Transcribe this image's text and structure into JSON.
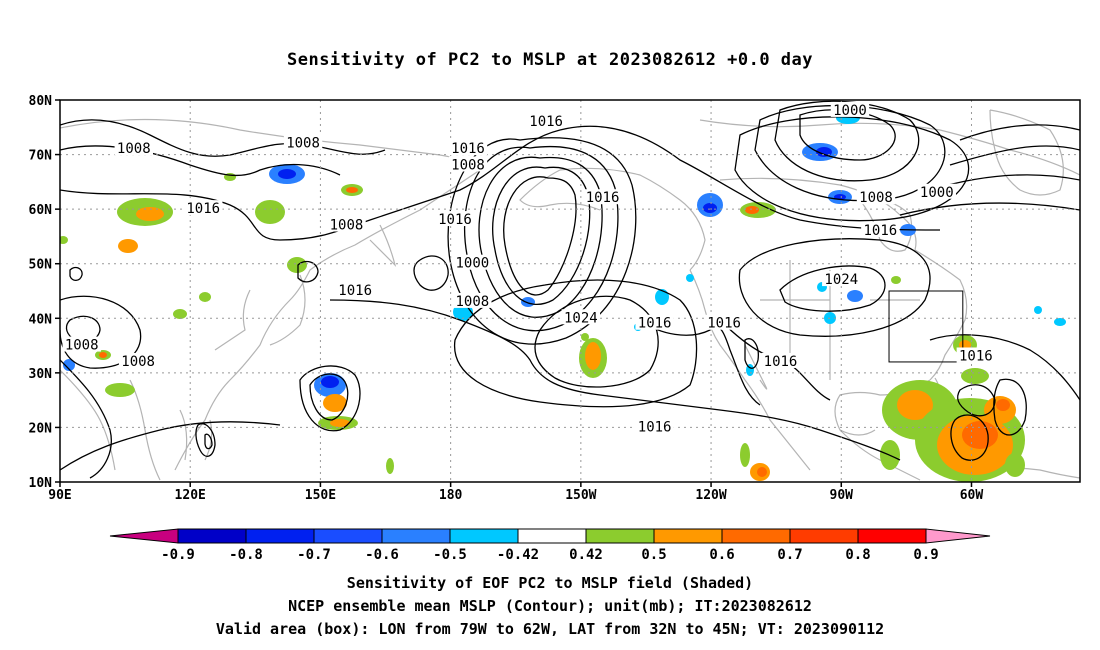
{
  "title": "Sensitivity of PC2 to MSLP at 2023082612 +0.0 day",
  "lat_labels": [
    "80N",
    "70N",
    "60N",
    "50N",
    "40N",
    "30N",
    "20N",
    "10N"
  ],
  "lon_labels": [
    "90E",
    "120E",
    "150E",
    "180",
    "150W",
    "120W",
    "90W",
    "60W"
  ],
  "contour_labels": [
    {
      "text": "1016",
      "lon": -158,
      "lat": 76
    },
    {
      "text": "1000",
      "lon": -88,
      "lat": 78
    },
    {
      "text": "1008",
      "lon": 107,
      "lat": 71
    },
    {
      "text": "1008",
      "lon": 146,
      "lat": 72
    },
    {
      "text": "1016",
      "lon": -176,
      "lat": 71
    },
    {
      "text": "1008",
      "lon": -176,
      "lat": 68
    },
    {
      "text": "1016",
      "lon": 123,
      "lat": 60
    },
    {
      "text": "1008",
      "lon": 156,
      "lat": 57
    },
    {
      "text": "1016",
      "lon": -179,
      "lat": 58
    },
    {
      "text": "1016",
      "lon": -145,
      "lat": 62
    },
    {
      "text": "1008",
      "lon": -82,
      "lat": 62
    },
    {
      "text": "1000",
      "lon": -68,
      "lat": 63
    },
    {
      "text": "1016",
      "lon": -81,
      "lat": 56
    },
    {
      "text": "1000",
      "lon": -175,
      "lat": 50
    },
    {
      "text": "1024",
      "lon": -90,
      "lat": 47
    },
    {
      "text": "1008",
      "lon": -175,
      "lat": 43
    },
    {
      "text": "1016",
      "lon": 158,
      "lat": 45
    },
    {
      "text": "1024",
      "lon": -150,
      "lat": 40
    },
    {
      "text": "1016",
      "lon": -133,
      "lat": 39
    },
    {
      "text": "1016",
      "lon": -117,
      "lat": 39
    },
    {
      "text": "1016",
      "lon": -59,
      "lat": 33
    },
    {
      "text": "1016",
      "lon": -104,
      "lat": 32
    },
    {
      "text": "1008",
      "lon": 95,
      "lat": 35
    },
    {
      "text": "1008",
      "lon": 108,
      "lat": 32
    },
    {
      "text": "1016",
      "lon": -133,
      "lat": 20
    }
  ],
  "colorbar": {
    "ticks": [
      "-0.9",
      "-0.8",
      "-0.7",
      "-0.6",
      "-0.5",
      "-0.42",
      "0.42",
      "0.5",
      "0.6",
      "0.7",
      "0.8",
      "0.9"
    ],
    "colors": [
      "#c8007f",
      "#0000c8",
      "#0020f0",
      "#1a4dff",
      "#2a80ff",
      "#00c8ff",
      "#ffffff",
      "#8ccc2e",
      "#ff9900",
      "#ff6a00",
      "#ff3c00",
      "#ff0000",
      "#ff99cc"
    ]
  },
  "captions": {
    "line1": "Sensitivity of EOF PC2 to MSLP field (Shaded)",
    "line2": "NCEP ensemble mean MSLP (Contour); unit(mb); IT:2023082612",
    "line3": "Valid area (box): LON from 79W to 62W, LAT from 32N to 45N; VT: 2023090112"
  },
  "valid_box": {
    "lon_min": -79,
    "lon_max": -62,
    "lat_min": 32,
    "lat_max": 45
  }
}
